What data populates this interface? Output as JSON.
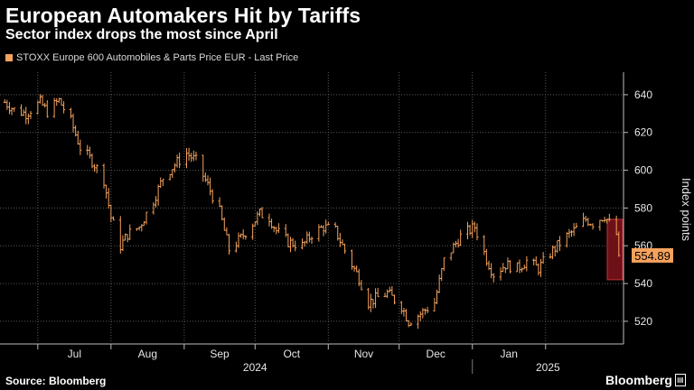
{
  "header": {
    "title": "European Automakers Hit by Tariffs",
    "subtitle": "Sector index drops the most since April"
  },
  "legend": {
    "label": "STOXX Europe 600 Automobiles & Parts Price EUR - Last Price",
    "color": "#f5a25d"
  },
  "footer": {
    "source": "Source: Bloomberg",
    "brand": "Bloomberg"
  },
  "chart_data": {
    "type": "line",
    "style": "ohlc-bars",
    "title": "European Automakers Hit by Tariffs",
    "subtitle": "Sector index drops the most since April",
    "ylabel": "Index points",
    "ylim": [
      508,
      650
    ],
    "yticks": [
      520,
      540,
      560,
      580,
      600,
      620,
      640
    ],
    "y_axis_side": "right",
    "grid": "dotted",
    "x_months": [
      "Jul",
      "Aug",
      "Sep",
      "Oct",
      "Nov",
      "Dec",
      "Jan"
    ],
    "x_years": [
      "2024",
      "2025"
    ],
    "last_value_label": "554.89",
    "highlight_range": [
      542,
      574
    ],
    "series": [
      {
        "name": "STOXX Europe 600 Automobiles & Parts Price EUR - Last Price",
        "color": "#f5a25d",
        "points": [
          {
            "x": "2024-06-17",
            "y": 636
          },
          {
            "x": "2024-06-21",
            "y": 632
          },
          {
            "x": "2024-06-26",
            "y": 630
          },
          {
            "x": "2024-07-02",
            "y": 636
          },
          {
            "x": "2024-07-05",
            "y": 631
          },
          {
            "x": "2024-07-10",
            "y": 637
          },
          {
            "x": "2024-07-15",
            "y": 626
          },
          {
            "x": "2024-07-19",
            "y": 612
          },
          {
            "x": "2024-07-24",
            "y": 605
          },
          {
            "x": "2024-07-29",
            "y": 595
          },
          {
            "x": "2024-08-01",
            "y": 575
          },
          {
            "x": "2024-08-05",
            "y": 560
          },
          {
            "x": "2024-08-08",
            "y": 566
          },
          {
            "x": "2024-08-13",
            "y": 570
          },
          {
            "x": "2024-08-19",
            "y": 584
          },
          {
            "x": "2024-08-23",
            "y": 596
          },
          {
            "x": "2024-08-28",
            "y": 603
          },
          {
            "x": "2024-09-02",
            "y": 609
          },
          {
            "x": "2024-09-06",
            "y": 605
          },
          {
            "x": "2024-09-11",
            "y": 592
          },
          {
            "x": "2024-09-16",
            "y": 578
          },
          {
            "x": "2024-09-20",
            "y": 558
          },
          {
            "x": "2024-09-25",
            "y": 564
          },
          {
            "x": "2024-09-30",
            "y": 572
          },
          {
            "x": "2024-10-03",
            "y": 577
          },
          {
            "x": "2024-10-07",
            "y": 575
          },
          {
            "x": "2024-10-10",
            "y": 568
          },
          {
            "x": "2024-10-15",
            "y": 562
          },
          {
            "x": "2024-10-21",
            "y": 560
          },
          {
            "x": "2024-10-25",
            "y": 566
          },
          {
            "x": "2024-10-30",
            "y": 570
          },
          {
            "x": "2024-11-04",
            "y": 568
          },
          {
            "x": "2024-11-07",
            "y": 560
          },
          {
            "x": "2024-11-11",
            "y": 550
          },
          {
            "x": "2024-11-14",
            "y": 543
          },
          {
            "x": "2024-11-18",
            "y": 530
          },
          {
            "x": "2024-11-21",
            "y": 532
          },
          {
            "x": "2024-11-26",
            "y": 535
          },
          {
            "x": "2024-12-02",
            "y": 528
          },
          {
            "x": "2024-12-05",
            "y": 520
          },
          {
            "x": "2024-12-10",
            "y": 524
          },
          {
            "x": "2024-12-16",
            "y": 530
          },
          {
            "x": "2024-12-20",
            "y": 552
          },
          {
            "x": "2024-12-27",
            "y": 565
          },
          {
            "x": "2025-01-02",
            "y": 570
          },
          {
            "x": "2025-01-07",
            "y": 553
          },
          {
            "x": "2025-01-10",
            "y": 545
          },
          {
            "x": "2025-01-15",
            "y": 550
          },
          {
            "x": "2025-01-20",
            "y": 548
          },
          {
            "x": "2025-01-24",
            "y": 552
          },
          {
            "x": "2025-01-29",
            "y": 548
          },
          {
            "x": "2025-02-03",
            "y": 556
          },
          {
            "x": "2025-02-06",
            "y": 560
          },
          {
            "x": "2025-02-10",
            "y": 565
          },
          {
            "x": "2025-02-13",
            "y": 568
          },
          {
            "x": "2025-02-18",
            "y": 574
          },
          {
            "x": "2025-02-21",
            "y": 572
          },
          {
            "x": "2025-02-26",
            "y": 576
          },
          {
            "x": "2025-03-03",
            "y": 566
          },
          {
            "x": "2025-03-04",
            "y": 554.89
          }
        ]
      }
    ]
  }
}
